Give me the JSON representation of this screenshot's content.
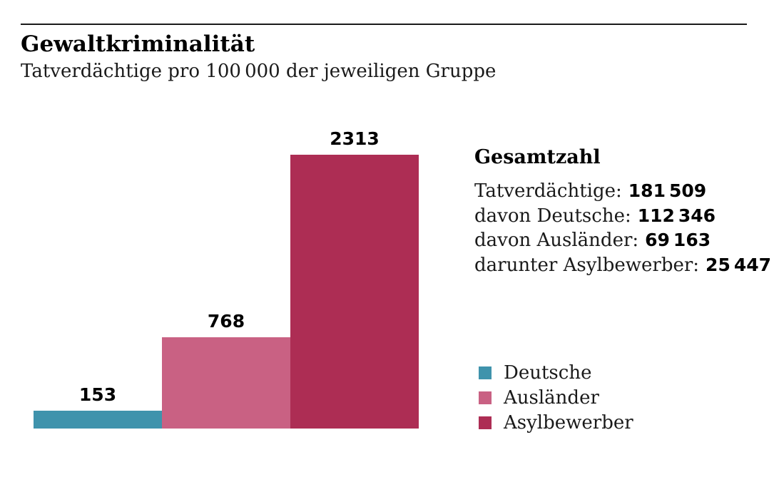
{
  "chart_data": {
    "type": "bar",
    "title": "Gewaltkriminalität",
    "subtitle": "Tatverdächtige pro 100 000 der jeweiligen Gruppe",
    "categories": [
      "Deutsche",
      "Ausländer",
      "Asylbewerber"
    ],
    "values": [
      153,
      768,
      2313
    ],
    "value_labels": [
      "153",
      "768",
      "2313"
    ],
    "colors": [
      "#3f93ac",
      "#c96183",
      "#ad2d54"
    ],
    "ylim": [
      0,
      2313
    ],
    "xlabel": "",
    "ylabel": "",
    "grid": false,
    "legend_position": "right"
  },
  "totals": {
    "heading": "Gesamtzahl",
    "rows": [
      {
        "label": "Tatverdächtige:",
        "value": "181 509"
      },
      {
        "label": "davon Deutsche:",
        "value": "112 346"
      },
      {
        "label": "davon Ausländer:",
        "value": "69 163"
      },
      {
        "label": "darunter Asylbewerber:",
        "value": "25 447"
      }
    ]
  },
  "legend": {
    "items": [
      {
        "label": "Deutsche",
        "color": "#3f93ac"
      },
      {
        "label": "Ausländer",
        "color": "#c96183"
      },
      {
        "label": "Asylbewerber",
        "color": "#ad2d54"
      }
    ]
  }
}
